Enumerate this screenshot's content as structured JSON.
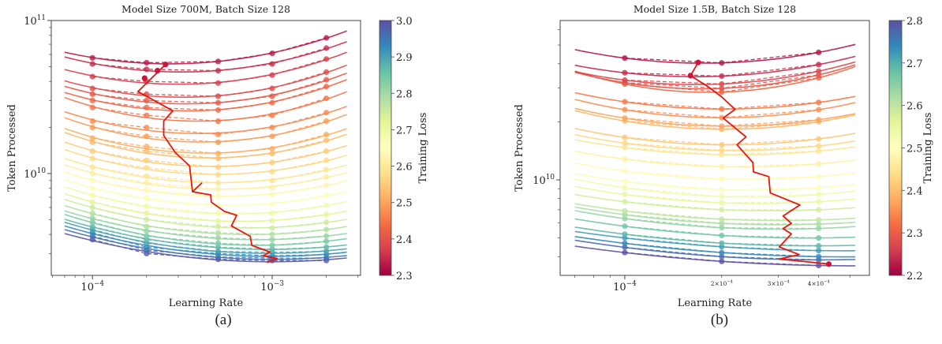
{
  "chart_data": [
    {
      "type": "line",
      "title": "Model Size 700M, Batch Size 128",
      "xlabel": "Learning Rate",
      "ylabel": "Token Processed",
      "xscale": "log",
      "yscale": "log",
      "xlim": [
        5.9e-05,
        0.0031
      ],
      "ylim": [
        2160000000.0,
        100000000000.0
      ],
      "fit_lr_range": [
        7e-05,
        0.0026
      ],
      "grid": false,
      "caption": "(a)",
      "x_ticks": [
        {
          "value": 0.0001,
          "mantissa": "",
          "base": "10",
          "exp": "−4"
        },
        {
          "value": 0.001,
          "mantissa": "",
          "base": "10",
          "exp": "−3"
        }
      ],
      "y_ticks": [
        {
          "value": 100000000000.0,
          "base": "10",
          "exp": "11"
        },
        {
          "value": 10000000000.0,
          "base": "10",
          "exp": "10"
        }
      ],
      "colorbar": {
        "label": "Training Loss",
        "colormap": "Spectral",
        "range": [
          2.3,
          3.0
        ],
        "ticks": [
          "2.3",
          "2.4",
          "2.5",
          "2.6",
          "2.7",
          "2.8",
          "2.9",
          "3.0"
        ]
      },
      "learning_rates": [
        0.0001,
        0.0002,
        0.0005,
        0.001,
        0.002
      ],
      "curves": [
        {
          "loss": 2.33,
          "tokens": [
            57000000000.0,
            53000000000.0,
            54000000000.0,
            61000000000.0,
            77000000000.0
          ]
        },
        {
          "loss": 2.35,
          "tokens": [
            52000000000.0,
            48000000000.0,
            47000000000.0,
            52000000000.0,
            66000000000.0
          ]
        },
        {
          "loss": 2.37,
          "tokens": [
            43000000000.0,
            40000000000.0,
            39000000000.0,
            44000000000.0,
            56000000000.0
          ]
        },
        {
          "loss": 2.39,
          "tokens": [
            36000000000.0,
            33000000000.0,
            32000000000.0,
            36000000000.0,
            46000000000.0
          ]
        },
        {
          "loss": 2.41,
          "tokens": [
            33000000000.0,
            30000000000.0,
            29000000000.0,
            32000000000.0,
            41000000000.0
          ]
        },
        {
          "loss": 2.43,
          "tokens": [
            30000000000.0,
            27000000000.0,
            26000000000.0,
            29000000000.0,
            37000000000.0
          ]
        },
        {
          "loss": 2.45,
          "tokens": [
            27000000000.0,
            24000000000.0,
            22000000000.0,
            24000000000.0,
            31000000000.0
          ]
        },
        {
          "loss": 2.47,
          "tokens": [
            22000000000.0,
            20000000000.0,
            18000000000.0,
            20000000000.0,
            25000000000.0
          ]
        },
        {
          "loss": 2.49,
          "tokens": [
            20000000000.0,
            17500000000.0,
            16000000000.0,
            17500000000.0,
            22000000000.0
          ]
        },
        {
          "loss": 2.51,
          "tokens": [
            17000000000.0,
            15000000000.0,
            13500000000.0,
            14500000000.0,
            18000000000.0
          ]
        },
        {
          "loss": 2.53,
          "tokens": [
            16000000000.0,
            14000000000.0,
            12500000000.0,
            13500000000.0,
            16500000000.0
          ]
        },
        {
          "loss": 2.55,
          "tokens": [
            14000000000.0,
            12200000000.0,
            11000000000.0,
            11800000000.0,
            14000000000.0
          ]
        },
        {
          "loss": 2.57,
          "tokens": [
            12500000000.0,
            10900000000.0,
            9800000000.0,
            10300000000.0,
            12200000000.0
          ]
        },
        {
          "loss": 2.59,
          "tokens": [
            11000000000.0,
            9600000000.0,
            8700000000.0,
            9000000000.0,
            10600000000.0
          ]
        },
        {
          "loss": 2.61,
          "tokens": [
            10000000000.0,
            8700000000.0,
            7900000000.0,
            8100000000.0,
            9500000000.0
          ]
        },
        {
          "loss": 2.63,
          "tokens": [
            9000000000.0,
            7800000000.0,
            7100000000.0,
            7300000000.0,
            8400000000.0
          ]
        },
        {
          "loss": 2.66,
          "tokens": [
            8000000000.0,
            6900000000.0,
            6200000000.0,
            6300000000.0,
            7200000000.0
          ]
        },
        {
          "loss": 2.69,
          "tokens": [
            7200000000.0,
            6100000000.0,
            5500000000.0,
            5500000000.0,
            6200000000.0
          ]
        },
        {
          "loss": 2.72,
          "tokens": [
            6500000000.0,
            5500000000.0,
            4900000000.0,
            4900000000.0,
            5400000000.0
          ]
        },
        {
          "loss": 2.75,
          "tokens": [
            6000000000.0,
            5000000000.0,
            4500000000.0,
            4400000000.0,
            4800000000.0
          ]
        },
        {
          "loss": 2.78,
          "tokens": [
            5500000000.0,
            4500000000.0,
            4100000000.0,
            4000000000.0,
            4300000000.0
          ]
        },
        {
          "loss": 2.81,
          "tokens": [
            5100000000.0,
            4200000000.0,
            3800000000.0,
            3700000000.0,
            3900000000.0
          ]
        },
        {
          "loss": 2.84,
          "tokens": [
            4800000000.0,
            3900000000.0,
            3500000000.0,
            3400000000.0,
            3600000000.0
          ]
        },
        {
          "loss": 2.87,
          "tokens": [
            4500000000.0,
            3700000000.0,
            3300000000.0,
            3200000000.0,
            3300000000.0
          ]
        },
        {
          "loss": 2.9,
          "tokens": [
            4300000000.0,
            3500000000.0,
            3100000000.0,
            3050000000.0,
            3100000000.0
          ]
        },
        {
          "loss": 2.93,
          "tokens": [
            4100000000.0,
            3300000000.0,
            3000000000.0,
            2900000000.0,
            2950000000.0
          ]
        },
        {
          "loss": 2.96,
          "tokens": [
            3900000000.0,
            3150000000.0,
            2850000000.0,
            2800000000.0,
            2800000000.0
          ]
        },
        {
          "loss": 2.99,
          "tokens": [
            3700000000.0,
            3000000000.0,
            2750000000.0,
            2700000000.0,
            2700000000.0
          ]
        }
      ],
      "optimal_path": {
        "color": "#e8160c",
        "points": [
          [
            0.000255,
            51600000000.0
          ],
          [
            0.000179,
            34300000000.0
          ],
          [
            0.00028,
            25700000000.0
          ],
          [
            0.000249,
            22000000000.0
          ],
          [
            0.000249,
            17700000000.0
          ],
          [
            0.000289,
            13700000000.0
          ],
          [
            0.000347,
            11200000000.0
          ],
          [
            0.00036,
            7600000000.0
          ],
          [
            0.000405,
            8650000000.0
          ],
          [
            0.00036,
            7600000000.0
          ],
          [
            0.000455,
            7250000000.0
          ],
          [
            0.000458,
            6500000000.0
          ],
          [
            0.000543,
            5650000000.0
          ],
          [
            0.000634,
            5330000000.0
          ],
          [
            0.000593,
            4550000000.0
          ],
          [
            0.000755,
            3890000000.0
          ],
          [
            0.00077,
            3390000000.0
          ],
          [
            0.00097,
            3070000000.0
          ],
          [
            0.000893,
            2900000000.0
          ],
          [
            0.00107,
            2780000000.0
          ],
          [
            0.000935,
            2620000000.0
          ]
        ],
        "markers": [
          [
            0.000255,
            51600000000.0
          ],
          [
            0.00023,
            47000000000.0
          ],
          [
            0.000195,
            42000000000.0
          ]
        ]
      }
    },
    {
      "type": "line",
      "title": "Model Size 1.5B, Batch Size 128",
      "xlabel": "Learning Rate",
      "ylabel": "Token Processed",
      "xscale": "log",
      "yscale": "log",
      "xlim": [
        6.3e-05,
        0.000575
      ],
      "ylim": [
        3200000000.0,
        67000000000.0
      ],
      "fit_lr_range": [
        7e-05,
        0.00052
      ],
      "grid": false,
      "caption": "(b)",
      "x_ticks": [
        {
          "value": 0.0001,
          "mantissa": "",
          "base": "10",
          "exp": "−4"
        },
        {
          "value": 0.0002,
          "mantissa": "2×",
          "base": "10",
          "exp": "−4",
          "minor": true
        },
        {
          "value": 0.0003,
          "mantissa": "3×",
          "base": "10",
          "exp": "−4",
          "minor": true
        },
        {
          "value": 0.0004,
          "mantissa": "4×",
          "base": "10",
          "exp": "−4",
          "minor": true
        }
      ],
      "y_ticks": [
        {
          "value": 10000000000.0,
          "base": "10",
          "exp": "10"
        }
      ],
      "colorbar": {
        "label": "Training Loss",
        "colormap": "Spectral",
        "range": [
          2.2,
          2.8
        ],
        "ticks": [
          "2.2",
          "2.3",
          "2.4",
          "2.5",
          "2.6",
          "2.7",
          "2.8"
        ]
      },
      "learning_rates": [
        0.0001,
        0.0002,
        0.0004
      ],
      "curves": [
        {
          "loss": 2.22,
          "tokens": [
            42800000000.0,
            40400000000.0,
            45800000000.0
          ]
        },
        {
          "loss": 2.24,
          "tokens": [
            35900000000.0,
            34500000000.0,
            39600000000.0
          ]
        },
        {
          "loss": 2.27,
          "tokens": [
            32900000000.0,
            31400000000.0,
            36600000000.0
          ]
        },
        {
          "loss": 2.29,
          "tokens": [
            31900000000.0,
            29800000000.0,
            35000000000.0
          ]
        },
        {
          "loss": 2.31,
          "tokens": [
            31400000000.0,
            28500000000.0,
            33800000000.0
          ]
        },
        {
          "loss": 2.33,
          "tokens": [
            25400000000.0,
            23300000000.0,
            25200000000.0
          ]
        },
        {
          "loss": 2.35,
          "tokens": [
            23100000000.0,
            21000000000.0,
            23100000000.0
          ]
        },
        {
          "loss": 2.37,
          "tokens": [
            20900000000.0,
            19000000000.0,
            20500000000.0
          ]
        },
        {
          "loss": 2.39,
          "tokens": [
            20200000000.0,
            18300000000.0,
            20000000000.0
          ]
        },
        {
          "loss": 2.41,
          "tokens": [
            16600000000.0,
            15200000000.0,
            16300000000.0
          ]
        },
        {
          "loss": 2.43,
          "tokens": [
            15500000000.0,
            14200000000.0,
            15000000000.0
          ]
        },
        {
          "loss": 2.45,
          "tokens": [
            14700000000.0,
            13500000000.0,
            14100000000.0
          ]
        },
        {
          "loss": 2.47,
          "tokens": [
            12800000000.0,
            11700000000.0,
            12100000000.0
          ]
        },
        {
          "loss": 2.49,
          "tokens": [
            11100000000.0,
            10100000000.0,
            10400000000.0
          ]
        },
        {
          "loss": 2.51,
          "tokens": [
            9800000000.0,
            8900000000.0,
            9100000000.0
          ]
        },
        {
          "loss": 2.53,
          "tokens": [
            9100000000.0,
            8200000000.0,
            8400000000.0
          ]
        },
        {
          "loss": 2.55,
          "tokens": [
            8400000000.0,
            7600000000.0,
            7700000000.0
          ]
        },
        {
          "loss": 2.58,
          "tokens": [
            7700000000.0,
            7000000000.0,
            7000000000.0
          ]
        },
        {
          "loss": 2.6,
          "tokens": [
            6900000000.0,
            6250000000.0,
            6200000000.0
          ]
        },
        {
          "loss": 2.62,
          "tokens": [
            6600000000.0,
            5950000000.0,
            5900000000.0
          ]
        },
        {
          "loss": 2.64,
          "tokens": [
            6300000000.0,
            5650000000.0,
            5600000000.0
          ]
        },
        {
          "loss": 2.67,
          "tokens": [
            5750000000.0,
            5150000000.0,
            5000000000.0
          ]
        },
        {
          "loss": 2.69,
          "tokens": [
            5230000000.0,
            4700000000.0,
            4550000000.0
          ]
        },
        {
          "loss": 2.72,
          "tokens": [
            5000000000.0,
            4500000000.0,
            4300000000.0
          ]
        },
        {
          "loss": 2.74,
          "tokens": [
            4690000000.0,
            4200000000.0,
            4000000000.0
          ]
        },
        {
          "loss": 2.77,
          "tokens": [
            4470000000.0,
            4000000000.0,
            3850000000.0
          ]
        },
        {
          "loss": 2.8,
          "tokens": [
            4200000000.0,
            3780000000.0,
            3600000000.0
          ]
        }
      ],
      "optimal_path": {
        "color": "#e8160c",
        "points": [
          [
            0.000169,
            40600000000.0
          ],
          [
            0.00016,
            34700000000.0
          ],
          [
            0.000181,
            30500000000.0
          ],
          [
            0.0002,
            26900000000.0
          ],
          [
            0.00022,
            23200000000.0
          ],
          [
            0.000202,
            20900000000.0
          ],
          [
            0.000238,
            16700000000.0
          ],
          [
            0.000223,
            15200000000.0
          ],
          [
            0.00025,
            12300000000.0
          ],
          [
            0.000251,
            11000000000.0
          ],
          [
            0.00028,
            10400000000.0
          ],
          [
            0.000283,
            8550000000.0
          ],
          [
            0.00035,
            7410000000.0
          ],
          [
            0.00031,
            6500000000.0
          ],
          [
            0.000329,
            5950000000.0
          ],
          [
            0.00031,
            5590000000.0
          ],
          [
            0.000329,
            5250000000.0
          ],
          [
            0.000302,
            4490000000.0
          ],
          [
            0.000348,
            4100000000.0
          ],
          [
            0.000302,
            3890000000.0
          ],
          [
            0.0004,
            3710000000.0
          ],
          [
            0.00043,
            3660000000.0
          ]
        ],
        "markers": [
          [
            0.000169,
            40600000000.0
          ],
          [
            0.00016,
            34700000000.0
          ],
          [
            0.00043,
            3660000000.0
          ]
        ]
      }
    }
  ]
}
